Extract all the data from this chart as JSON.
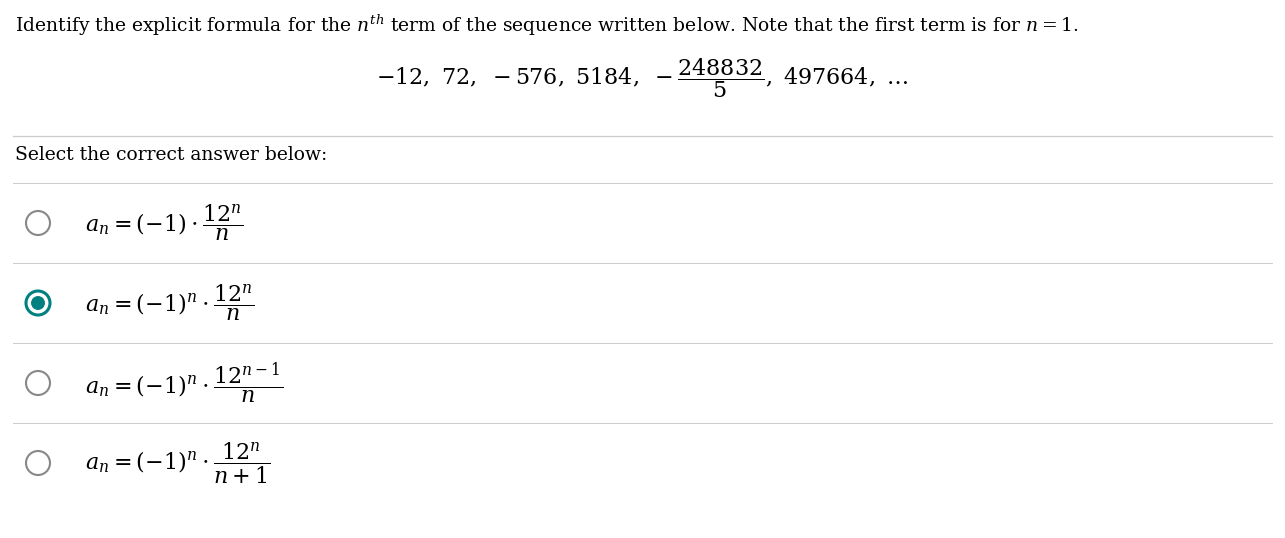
{
  "bg_color": "#ffffff",
  "text_color": "#000000",
  "teal_color": "#008080",
  "line_color": "#cccccc",
  "title_formula": "Identify the explicit formula for the $n^{th}$ term of the sequence written below. Note that the first term is for $n = 1$.",
  "sequence_formula": "$-12, \\ 72, \\ -576, \\ 5184, \\ -\\dfrac{248832}{5}, \\ 497664, \\ \\ldots$",
  "select_text": "Select the correct answer below:",
  "options": [
    {
      "selected": false,
      "formula": "$a_n = (-1) \\cdot \\dfrac{12^{n}}{n}$"
    },
    {
      "selected": true,
      "formula": "$a_n = (-1)^{n} \\cdot \\dfrac{12^{n}}{n}$"
    },
    {
      "selected": false,
      "formula": "$a_n = (-1)^{n} \\cdot \\dfrac{12^{n-1}}{n}$"
    },
    {
      "selected": false,
      "formula": "$a_n = (-1)^{n} \\cdot \\dfrac{12^{n}}{n+1}$"
    }
  ],
  "fig_width": 12.85,
  "fig_height": 5.38,
  "dpi": 100
}
